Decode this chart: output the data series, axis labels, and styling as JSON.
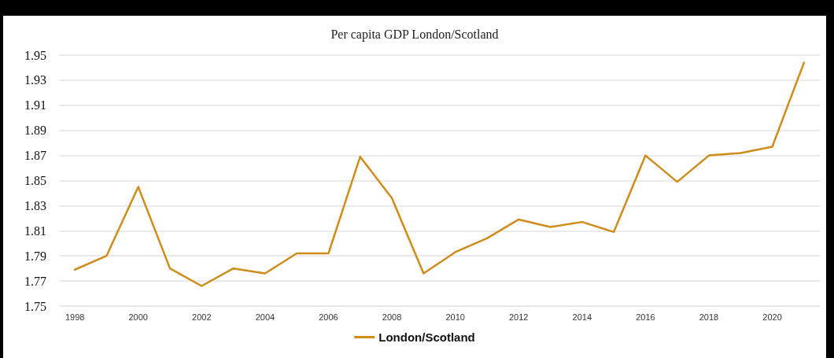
{
  "chart_data": {
    "type": "line",
    "title": "Per capita GDP London/Scotland",
    "categories": [
      "1998",
      null,
      "2000",
      null,
      "2002",
      null,
      "2004",
      null,
      "2006",
      null,
      "2008",
      null,
      "2010",
      null,
      "2012",
      null,
      "2014",
      null,
      "2016",
      null,
      "2018",
      null,
      "2020",
      null
    ],
    "series": [
      {
        "name": "London/Scotland",
        "color": "#d08c1a",
        "values": [
          1.779,
          1.79,
          1.845,
          1.78,
          1.766,
          1.78,
          1.776,
          1.792,
          1.792,
          1.869,
          1.836,
          1.776,
          1.793,
          1.804,
          1.819,
          1.813,
          1.817,
          1.809,
          1.87,
          1.849,
          1.87,
          1.872,
          1.877,
          1.944
        ]
      }
    ],
    "ylim": [
      1.75,
      1.95
    ],
    "yticks": [
      1.75,
      1.77,
      1.79,
      1.81,
      1.83,
      1.85,
      1.87,
      1.89,
      1.91,
      1.93,
      1.95
    ],
    "grid": "y",
    "legend": "bottom",
    "marker": "none",
    "line_style": "solid"
  }
}
